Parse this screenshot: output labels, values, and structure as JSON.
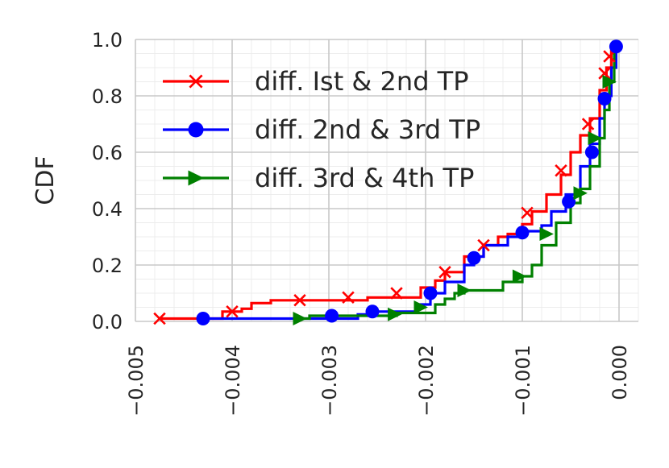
{
  "chart_data": {
    "type": "line",
    "title": "",
    "xlabel": "",
    "ylabel": "CDF",
    "xlim": [
      -0.005,
      0.0002
    ],
    "ylim": [
      0.0,
      1.0
    ],
    "x_ticks": [
      -0.005,
      -0.004,
      -0.003,
      -0.002,
      -0.001,
      0.0
    ],
    "x_tick_labels": [
      "−0.005",
      "−0.004",
      "−0.003",
      "−0.002",
      "−0.001",
      "0.000"
    ],
    "y_ticks": [
      0.0,
      0.2,
      0.4,
      0.6,
      0.8,
      1.0
    ],
    "y_tick_labels": [
      "0.0",
      "0.2",
      "0.4",
      "0.6",
      "0.8",
      "1.0"
    ],
    "grid": true,
    "minor_grid": true,
    "legend_position": "top-left",
    "series": [
      {
        "name": "diff. Ist & 2nd TP",
        "color": "#ff0000",
        "marker": "x",
        "line": [
          [
            -0.00475,
            0.01
          ],
          [
            -0.0041,
            0.01
          ],
          [
            -0.0041,
            0.035
          ],
          [
            -0.0039,
            0.035
          ],
          [
            -0.0039,
            0.045
          ],
          [
            -0.0038,
            0.045
          ],
          [
            -0.0038,
            0.065
          ],
          [
            -0.0036,
            0.065
          ],
          [
            -0.0036,
            0.075
          ],
          [
            -0.0026,
            0.075
          ],
          [
            -0.0026,
            0.085
          ],
          [
            -0.00205,
            0.085
          ],
          [
            -0.00205,
            0.12
          ],
          [
            -0.0019,
            0.12
          ],
          [
            -0.0019,
            0.145
          ],
          [
            -0.0018,
            0.145
          ],
          [
            -0.0018,
            0.175
          ],
          [
            -0.0016,
            0.175
          ],
          [
            -0.0016,
            0.23
          ],
          [
            -0.0014,
            0.23
          ],
          [
            -0.0014,
            0.27
          ],
          [
            -0.00125,
            0.27
          ],
          [
            -0.00125,
            0.3
          ],
          [
            -0.00115,
            0.3
          ],
          [
            -0.00115,
            0.31
          ],
          [
            -0.001,
            0.31
          ],
          [
            -0.001,
            0.345
          ],
          [
            -0.0009,
            0.345
          ],
          [
            -0.0009,
            0.39
          ],
          [
            -0.00075,
            0.39
          ],
          [
            -0.00075,
            0.45
          ],
          [
            -0.0006,
            0.45
          ],
          [
            -0.0006,
            0.52
          ],
          [
            -0.0005,
            0.52
          ],
          [
            -0.0005,
            0.6
          ],
          [
            -0.0004,
            0.6
          ],
          [
            -0.0004,
            0.66
          ],
          [
            -0.0003,
            0.66
          ],
          [
            -0.0003,
            0.72
          ],
          [
            -0.0002,
            0.72
          ],
          [
            -0.0002,
            0.82
          ],
          [
            -0.00013,
            0.82
          ],
          [
            -0.00013,
            0.9
          ],
          [
            -8e-05,
            0.9
          ],
          [
            -8e-05,
            0.96
          ],
          [
            -3e-05,
            0.96
          ],
          [
            -3e-05,
            0.99
          ]
        ],
        "markers": [
          [
            -0.00475,
            0.01
          ],
          [
            -0.004,
            0.035
          ],
          [
            -0.0033,
            0.075
          ],
          [
            -0.0028,
            0.085
          ],
          [
            -0.0023,
            0.1
          ],
          [
            -0.0018,
            0.175
          ],
          [
            -0.0014,
            0.27
          ],
          [
            -0.00095,
            0.385
          ],
          [
            -0.0006,
            0.535
          ],
          [
            -0.00032,
            0.7
          ],
          [
            -0.00015,
            0.88
          ],
          [
            -0.0001,
            0.94
          ]
        ]
      },
      {
        "name": "diff. 2nd & 3rd TP",
        "color": "#0000ff",
        "marker": "o",
        "line": [
          [
            -0.0043,
            0.01
          ],
          [
            -0.0027,
            0.01
          ],
          [
            -0.0027,
            0.025
          ],
          [
            -0.0026,
            0.025
          ],
          [
            -0.0026,
            0.035
          ],
          [
            -0.0021,
            0.035
          ],
          [
            -0.0021,
            0.06
          ],
          [
            -0.00195,
            0.06
          ],
          [
            -0.00195,
            0.1
          ],
          [
            -0.0018,
            0.1
          ],
          [
            -0.0018,
            0.14
          ],
          [
            -0.0016,
            0.14
          ],
          [
            -0.0016,
            0.2
          ],
          [
            -0.0015,
            0.2
          ],
          [
            -0.0015,
            0.23
          ],
          [
            -0.0014,
            0.23
          ],
          [
            -0.0014,
            0.27
          ],
          [
            -0.00115,
            0.27
          ],
          [
            -0.00115,
            0.3
          ],
          [
            -0.001,
            0.3
          ],
          [
            -0.001,
            0.32
          ],
          [
            -0.0008,
            0.32
          ],
          [
            -0.0008,
            0.34
          ],
          [
            -0.0007,
            0.34
          ],
          [
            -0.0007,
            0.39
          ],
          [
            -0.00055,
            0.39
          ],
          [
            -0.00055,
            0.45
          ],
          [
            -0.0004,
            0.45
          ],
          [
            -0.0004,
            0.55
          ],
          [
            -0.0003,
            0.55
          ],
          [
            -0.0003,
            0.63
          ],
          [
            -0.0002,
            0.63
          ],
          [
            -0.0002,
            0.72
          ],
          [
            -0.00015,
            0.72
          ],
          [
            -0.00015,
            0.8
          ],
          [
            -8e-05,
            0.8
          ],
          [
            -8e-05,
            0.9
          ],
          [
            -3e-05,
            0.9
          ],
          [
            -3e-05,
            0.98
          ]
        ],
        "markers": [
          [
            -0.0043,
            0.01
          ],
          [
            -0.00297,
            0.02
          ],
          [
            -0.00255,
            0.035
          ],
          [
            -0.00195,
            0.1
          ],
          [
            -0.0015,
            0.225
          ],
          [
            -0.001,
            0.315
          ],
          [
            -0.00052,
            0.425
          ],
          [
            -0.00028,
            0.6
          ],
          [
            -0.00015,
            0.79
          ],
          [
            -3e-05,
            0.975
          ]
        ]
      },
      {
        "name": "diff. 3rd & 4th TP",
        "color": "#008000",
        "marker": ">",
        "line": [
          [
            -0.0033,
            0.01
          ],
          [
            -0.0032,
            0.01
          ],
          [
            -0.0032,
            0.02
          ],
          [
            -0.0023,
            0.02
          ],
          [
            -0.0023,
            0.03
          ],
          [
            -0.0019,
            0.03
          ],
          [
            -0.0019,
            0.06
          ],
          [
            -0.0018,
            0.06
          ],
          [
            -0.0018,
            0.08
          ],
          [
            -0.0017,
            0.08
          ],
          [
            -0.0017,
            0.1
          ],
          [
            -0.0016,
            0.1
          ],
          [
            -0.0016,
            0.11
          ],
          [
            -0.0012,
            0.11
          ],
          [
            -0.0012,
            0.14
          ],
          [
            -0.001,
            0.14
          ],
          [
            -0.001,
            0.16
          ],
          [
            -0.0009,
            0.16
          ],
          [
            -0.0009,
            0.2
          ],
          [
            -0.0008,
            0.2
          ],
          [
            -0.0008,
            0.27
          ],
          [
            -0.00065,
            0.27
          ],
          [
            -0.00065,
            0.35
          ],
          [
            -0.0005,
            0.35
          ],
          [
            -0.0005,
            0.42
          ],
          [
            -0.0004,
            0.42
          ],
          [
            -0.0004,
            0.47
          ],
          [
            -0.0003,
            0.47
          ],
          [
            -0.0003,
            0.55
          ],
          [
            -0.0002,
            0.55
          ],
          [
            -0.0002,
            0.65
          ],
          [
            -0.00015,
            0.65
          ],
          [
            -0.00015,
            0.75
          ],
          [
            -0.0001,
            0.75
          ],
          [
            -0.0001,
            0.85
          ],
          [
            -5e-05,
            0.85
          ],
          [
            -5e-05,
            0.97
          ]
        ],
        "markers": [
          [
            -0.0033,
            0.01
          ],
          [
            -0.00232,
            0.025
          ],
          [
            -0.00205,
            0.05
          ],
          [
            -0.0016,
            0.11
          ],
          [
            -0.00103,
            0.16
          ],
          [
            -0.00075,
            0.31
          ],
          [
            -0.0004,
            0.455
          ],
          [
            -0.00025,
            0.65
          ],
          [
            -0.0001,
            0.85
          ]
        ]
      }
    ]
  }
}
